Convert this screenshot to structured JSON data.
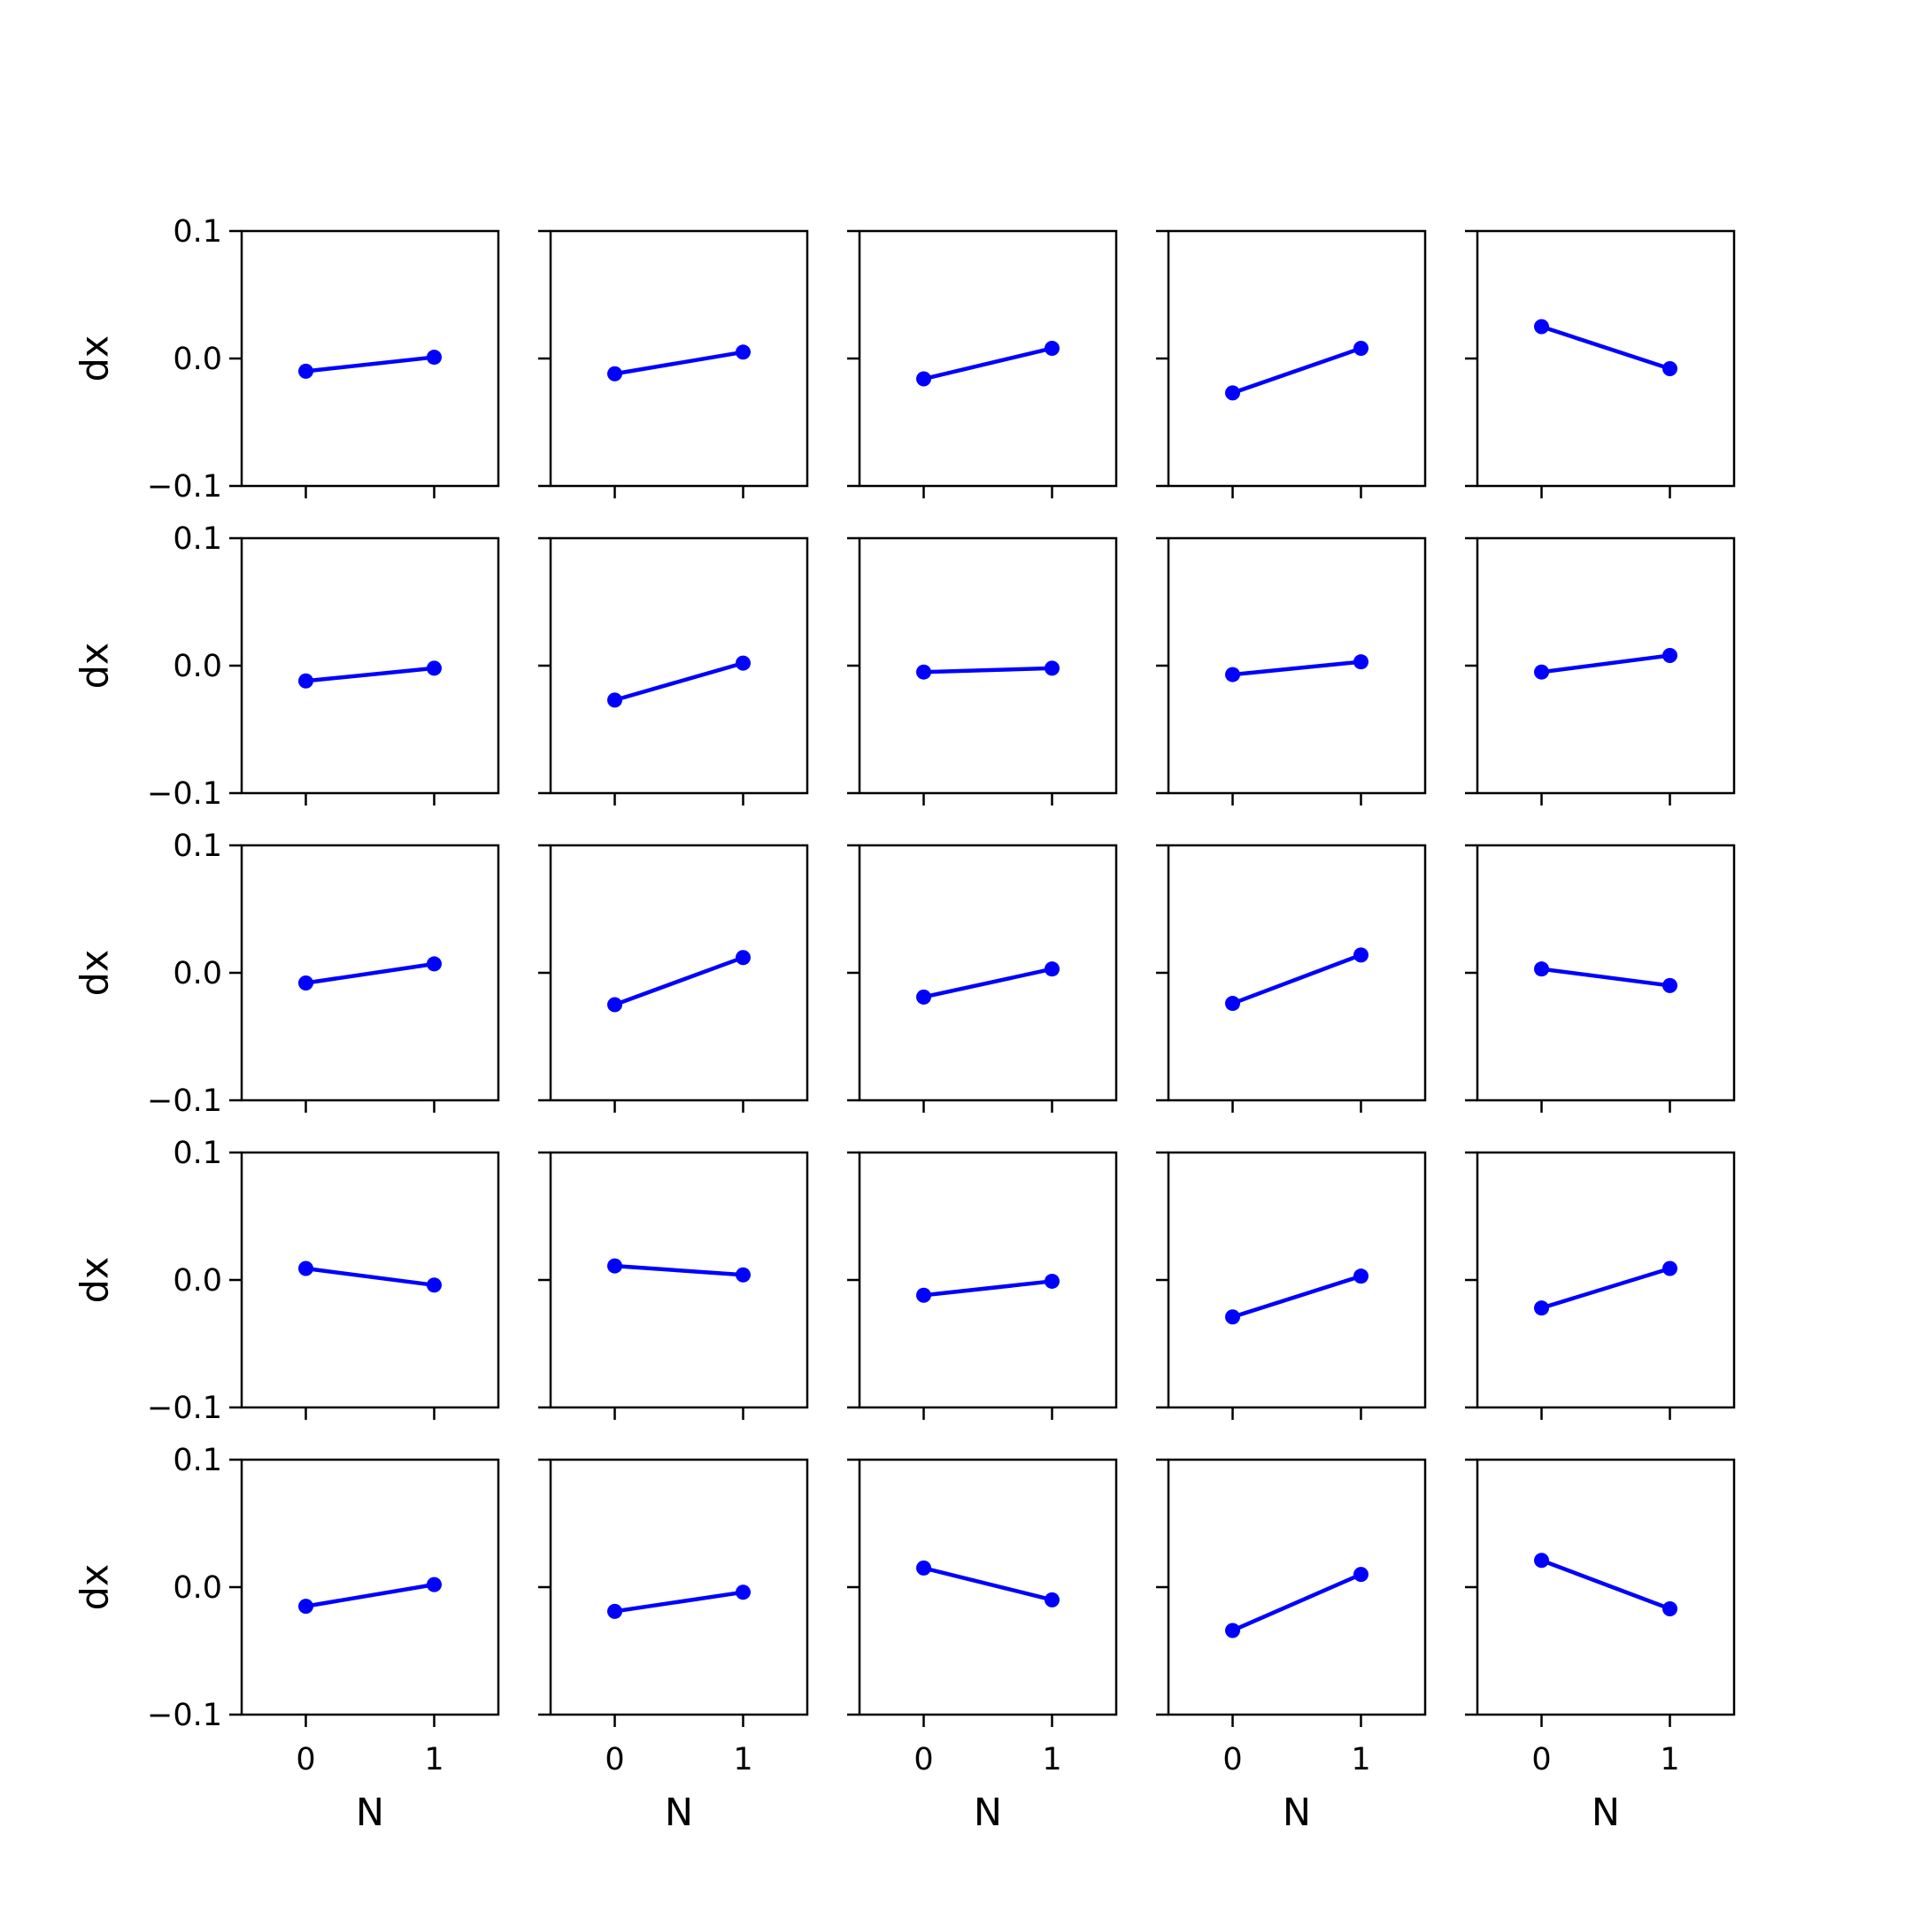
{
  "figure": {
    "rows": 5,
    "cols": 5,
    "line_color": "#0000ff",
    "axis_color": "#000000"
  },
  "chart_data": {
    "type": "line",
    "layout": "5x5 grid of small multiples, shared axes",
    "xlabel": "N",
    "ylabel": "dx",
    "x": [
      0,
      1
    ],
    "xticks": [
      "0",
      "1"
    ],
    "xlim": [
      -0.5,
      1.5
    ],
    "yticks": [
      "0.1",
      "0.0",
      "−0.1"
    ],
    "ylim": [
      -0.1,
      0.1
    ],
    "grid": false,
    "legend": "none",
    "panels": [
      {
        "row": 0,
        "col": 0,
        "values": [
          -0.01,
          0.001
        ]
      },
      {
        "row": 0,
        "col": 1,
        "values": [
          -0.012,
          0.005
        ]
      },
      {
        "row": 0,
        "col": 2,
        "values": [
          -0.016,
          0.008
        ]
      },
      {
        "row": 0,
        "col": 3,
        "values": [
          -0.027,
          0.008
        ]
      },
      {
        "row": 0,
        "col": 4,
        "values": [
          0.025,
          -0.008
        ]
      },
      {
        "row": 1,
        "col": 0,
        "values": [
          -0.012,
          -0.002
        ]
      },
      {
        "row": 1,
        "col": 1,
        "values": [
          -0.027,
          0.002
        ]
      },
      {
        "row": 1,
        "col": 2,
        "values": [
          -0.005,
          -0.002
        ]
      },
      {
        "row": 1,
        "col": 3,
        "values": [
          -0.007,
          0.003
        ]
      },
      {
        "row": 1,
        "col": 4,
        "values": [
          -0.005,
          0.008
        ]
      },
      {
        "row": 2,
        "col": 0,
        "values": [
          -0.008,
          0.007
        ]
      },
      {
        "row": 2,
        "col": 1,
        "values": [
          -0.025,
          0.012
        ]
      },
      {
        "row": 2,
        "col": 2,
        "values": [
          -0.019,
          0.003
        ]
      },
      {
        "row": 2,
        "col": 3,
        "values": [
          -0.024,
          0.014
        ]
      },
      {
        "row": 2,
        "col": 4,
        "values": [
          0.003,
          -0.01
        ]
      },
      {
        "row": 3,
        "col": 0,
        "values": [
          0.009,
          -0.004
        ]
      },
      {
        "row": 3,
        "col": 1,
        "values": [
          0.011,
          0.004
        ]
      },
      {
        "row": 3,
        "col": 2,
        "values": [
          -0.012,
          -0.001
        ]
      },
      {
        "row": 3,
        "col": 3,
        "values": [
          -0.029,
          0.003
        ]
      },
      {
        "row": 3,
        "col": 4,
        "values": [
          -0.022,
          0.009
        ]
      },
      {
        "row": 4,
        "col": 0,
        "values": [
          -0.015,
          0.002
        ]
      },
      {
        "row": 4,
        "col": 1,
        "values": [
          -0.019,
          -0.004
        ]
      },
      {
        "row": 4,
        "col": 2,
        "values": [
          0.015,
          -0.01
        ]
      },
      {
        "row": 4,
        "col": 3,
        "values": [
          -0.034,
          0.01
        ]
      },
      {
        "row": 4,
        "col": 4,
        "values": [
          0.021,
          -0.017
        ]
      }
    ]
  }
}
